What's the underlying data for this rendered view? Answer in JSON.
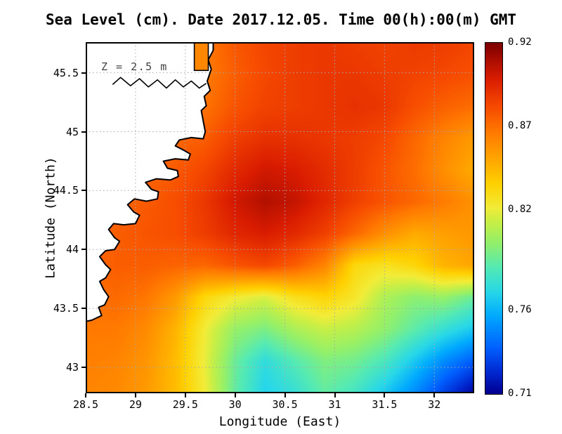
{
  "figure": {
    "title": "Sea Level (cm). Date 2017.12.05. Time 00(h):00(m) GMT",
    "annotation": "Z = 2.5 m",
    "xlabel": "Longitude (East)",
    "ylabel": "Latitude (North)"
  },
  "chart_data": {
    "type": "heatmap",
    "title": "Sea Level (cm). Date 2017.12.05. Time 00(h):00(m) GMT",
    "annotation": "Z = 2.5 m",
    "xlabel": "Longitude (East)",
    "ylabel": "Latitude (North)",
    "xlim": [
      28.5,
      32.4
    ],
    "ylim": [
      42.78,
      45.76
    ],
    "grid": true,
    "grid_color": "#a8a8a8",
    "land_fill": "#ffffff",
    "coast_stroke": "#000000",
    "x_tick_values": [
      28.5,
      29,
      29.5,
      30,
      30.5,
      31,
      31.5,
      32
    ],
    "x_tick_labels": [
      "28.5",
      "29",
      "29.5",
      "30",
      "30.5",
      "31",
      "31.5",
      "32"
    ],
    "y_tick_values": [
      45.5,
      45,
      44.5,
      44,
      43.5,
      43
    ],
    "y_tick_labels": [
      "45.5",
      "45",
      "44.5",
      "44",
      "43.5",
      "43"
    ],
    "colorbar": {
      "vmin": 0.71,
      "vmax": 0.92,
      "tick_values": [
        0.92,
        0.87,
        0.82,
        0.76,
        0.71
      ],
      "tick_labels": [
        "0.92",
        "0.87",
        "0.82",
        "0.76",
        "0.71"
      ],
      "position": "right"
    },
    "colormap": [
      [
        0.0,
        "#000090"
      ],
      [
        0.06,
        "#0028d0"
      ],
      [
        0.13,
        "#0060ff"
      ],
      [
        0.22,
        "#00a8ff"
      ],
      [
        0.29,
        "#28d8e8"
      ],
      [
        0.36,
        "#55eab4"
      ],
      [
        0.43,
        "#93f06a"
      ],
      [
        0.49,
        "#c8ef46"
      ],
      [
        0.53,
        "#f2ec38"
      ],
      [
        0.6,
        "#ffd000"
      ],
      [
        0.68,
        "#ffa000"
      ],
      [
        0.75,
        "#ff7800"
      ],
      [
        0.82,
        "#f64a00"
      ],
      [
        0.9,
        "#d91c00"
      ],
      [
        1.0,
        "#7e0000"
      ]
    ],
    "lon": [
      28.5,
      28.8,
      29.1,
      29.4,
      29.7,
      30.0,
      30.3,
      30.6,
      30.9,
      31.2,
      31.5,
      31.8,
      32.1,
      32.4
    ],
    "lat": [
      45.76,
      45.49,
      45.22,
      44.95,
      44.68,
      44.41,
      44.14,
      43.87,
      43.6,
      43.33,
      43.06,
      42.78
    ],
    "values": [
      [
        0.87,
        0.872,
        0.874,
        0.871,
        0.867,
        0.878,
        0.884,
        0.887,
        0.889,
        0.887,
        0.885,
        0.888,
        0.887,
        0.884
      ],
      [
        0.868,
        0.87,
        0.872,
        0.869,
        0.866,
        0.876,
        0.883,
        0.887,
        0.889,
        0.889,
        0.887,
        0.885,
        0.883,
        0.88
      ],
      [
        0.866,
        0.868,
        0.87,
        0.87,
        0.869,
        0.879,
        0.885,
        0.887,
        0.889,
        0.891,
        0.889,
        0.881,
        0.875,
        0.871
      ],
      [
        0.865,
        0.867,
        0.87,
        0.873,
        0.876,
        0.886,
        0.891,
        0.891,
        0.889,
        0.887,
        0.883,
        0.873,
        0.863,
        0.855
      ],
      [
        0.866,
        0.869,
        0.873,
        0.877,
        0.884,
        0.894,
        0.901,
        0.899,
        0.893,
        0.887,
        0.879,
        0.871,
        0.859,
        0.849
      ],
      [
        0.869,
        0.873,
        0.877,
        0.881,
        0.889,
        0.901,
        0.908,
        0.904,
        0.895,
        0.886,
        0.879,
        0.873,
        0.866,
        0.858
      ],
      [
        0.872,
        0.876,
        0.879,
        0.881,
        0.887,
        0.895,
        0.899,
        0.894,
        0.886,
        0.873,
        0.859,
        0.849,
        0.853,
        0.856
      ],
      [
        0.873,
        0.876,
        0.876,
        0.874,
        0.873,
        0.879,
        0.883,
        0.876,
        0.863,
        0.832,
        0.827,
        0.833,
        0.846,
        0.851
      ],
      [
        0.87,
        0.872,
        0.868,
        0.855,
        0.832,
        0.822,
        0.816,
        0.828,
        0.834,
        0.825,
        0.807,
        0.799,
        0.801,
        0.791
      ],
      [
        0.867,
        0.867,
        0.861,
        0.846,
        0.821,
        0.801,
        0.795,
        0.806,
        0.813,
        0.809,
        0.8,
        0.788,
        0.776,
        0.766
      ],
      [
        0.865,
        0.863,
        0.857,
        0.843,
        0.819,
        0.791,
        0.774,
        0.786,
        0.796,
        0.793,
        0.783,
        0.766,
        0.749,
        0.736
      ],
      [
        0.863,
        0.861,
        0.855,
        0.843,
        0.821,
        0.789,
        0.769,
        0.776,
        0.789,
        0.781,
        0.766,
        0.749,
        0.729,
        0.712
      ]
    ],
    "coastline": [
      [
        29.78,
        45.76
      ],
      [
        29.78,
        45.69
      ],
      [
        29.73,
        45.61
      ],
      [
        29.76,
        45.53
      ],
      [
        29.72,
        45.43
      ],
      [
        29.75,
        45.35
      ],
      [
        29.69,
        45.3
      ],
      [
        29.71,
        45.22
      ],
      [
        29.66,
        45.18
      ],
      [
        29.68,
        45.09
      ],
      [
        29.7,
        45.0
      ],
      [
        29.68,
        44.94
      ],
      [
        29.56,
        44.95
      ],
      [
        29.44,
        44.93
      ],
      [
        29.4,
        44.88
      ],
      [
        29.49,
        44.84
      ],
      [
        29.55,
        44.81
      ],
      [
        29.53,
        44.76
      ],
      [
        29.4,
        44.77
      ],
      [
        29.28,
        44.75
      ],
      [
        29.32,
        44.69
      ],
      [
        29.42,
        44.67
      ],
      [
        29.43,
        44.62
      ],
      [
        29.35,
        44.59
      ],
      [
        29.21,
        44.6
      ],
      [
        29.1,
        44.57
      ],
      [
        29.16,
        44.51
      ],
      [
        29.23,
        44.49
      ],
      [
        29.22,
        44.43
      ],
      [
        29.11,
        44.41
      ],
      [
        28.99,
        44.43
      ],
      [
        28.92,
        44.38
      ],
      [
        28.98,
        44.32
      ],
      [
        29.04,
        44.29
      ],
      [
        29.0,
        44.22
      ],
      [
        28.88,
        44.21
      ],
      [
        28.78,
        44.22
      ],
      [
        28.73,
        44.17
      ],
      [
        28.79,
        44.1
      ],
      [
        28.84,
        44.07
      ],
      [
        28.79,
        44.0
      ],
      [
        28.7,
        43.99
      ],
      [
        28.64,
        43.94
      ],
      [
        28.7,
        43.87
      ],
      [
        28.75,
        43.83
      ],
      [
        28.7,
        43.76
      ],
      [
        28.64,
        43.73
      ],
      [
        28.68,
        43.66
      ],
      [
        28.73,
        43.6
      ],
      [
        28.69,
        43.53
      ],
      [
        28.63,
        43.51
      ],
      [
        28.66,
        43.44
      ],
      [
        28.61,
        43.42
      ],
      [
        28.56,
        43.4
      ],
      [
        28.5,
        43.39
      ],
      [
        28.5,
        45.76
      ]
    ],
    "lagoon_line": [
      [
        28.77,
        45.4
      ],
      [
        28.85,
        45.46
      ],
      [
        28.95,
        45.39
      ],
      [
        29.04,
        45.45
      ],
      [
        29.13,
        45.38
      ],
      [
        29.22,
        45.44
      ],
      [
        29.31,
        45.37
      ],
      [
        29.4,
        45.44
      ],
      [
        29.48,
        45.38
      ],
      [
        29.56,
        45.43
      ],
      [
        29.64,
        45.37
      ],
      [
        29.71,
        45.41
      ]
    ],
    "lagoon_rect": {
      "lon0": 29.59,
      "lon1": 29.73,
      "lat0": 45.52,
      "lat1": 45.76,
      "value": 0.862
    }
  }
}
